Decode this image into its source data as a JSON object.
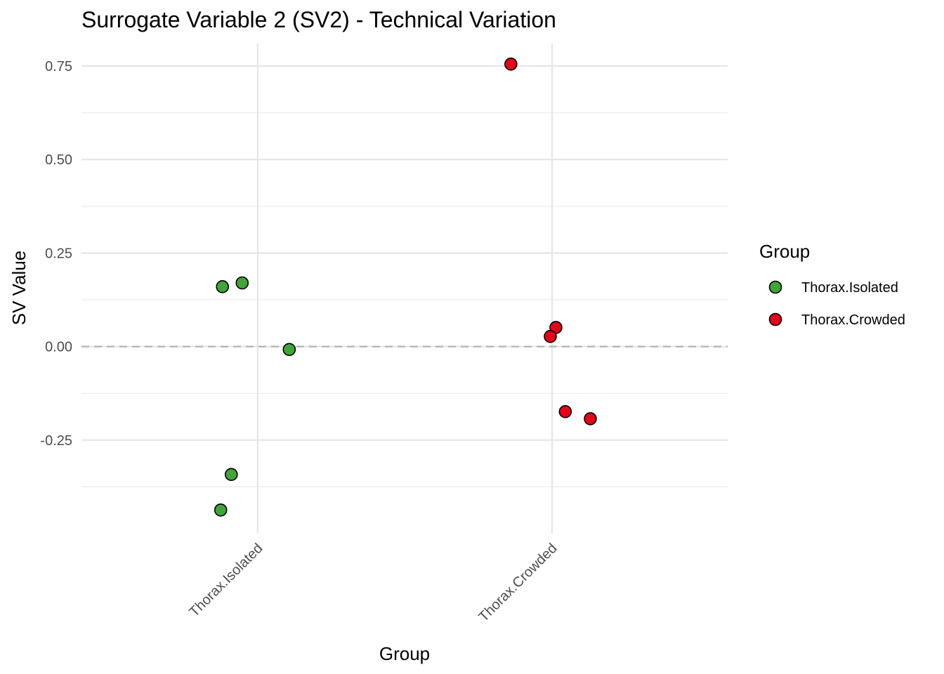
{
  "chart_data": {
    "type": "scatter",
    "title": "Surrogate Variable 2 (SV2) - Technical Variation",
    "xlabel": "Group",
    "ylabel": "SV Value",
    "categories": [
      "Thorax.Isolated",
      "Thorax.Crowded"
    ],
    "ylim": [
      -0.5,
      0.81
    ],
    "yticks": [
      -0.25,
      0.0,
      0.25,
      0.5,
      0.75
    ],
    "ytick_labels": [
      "-0.25",
      "0.00",
      "0.25",
      "0.50",
      "0.75"
    ],
    "reference_line": {
      "y": 0,
      "style": "dashed"
    },
    "grid": true,
    "legend": {
      "title": "Group",
      "position": "right"
    },
    "series": [
      {
        "name": "Thorax.Isolated",
        "color": "#43a33b",
        "points": [
          {
            "x": -0.12,
            "y": 0.16
          },
          {
            "x": -0.053,
            "y": 0.17
          },
          {
            "x": 0.107,
            "y": -0.008
          },
          {
            "x": -0.09,
            "y": -0.342
          },
          {
            "x": -0.126,
            "y": -0.437
          }
        ]
      },
      {
        "name": "Thorax.Crowded",
        "color": "#e3051b",
        "points": [
          {
            "x": -0.14,
            "y": 0.755
          },
          {
            "x": 0.013,
            "y": 0.051
          },
          {
            "x": -0.006,
            "y": 0.027
          },
          {
            "x": 0.045,
            "y": -0.174
          },
          {
            "x": 0.13,
            "y": -0.193
          }
        ]
      }
    ]
  }
}
